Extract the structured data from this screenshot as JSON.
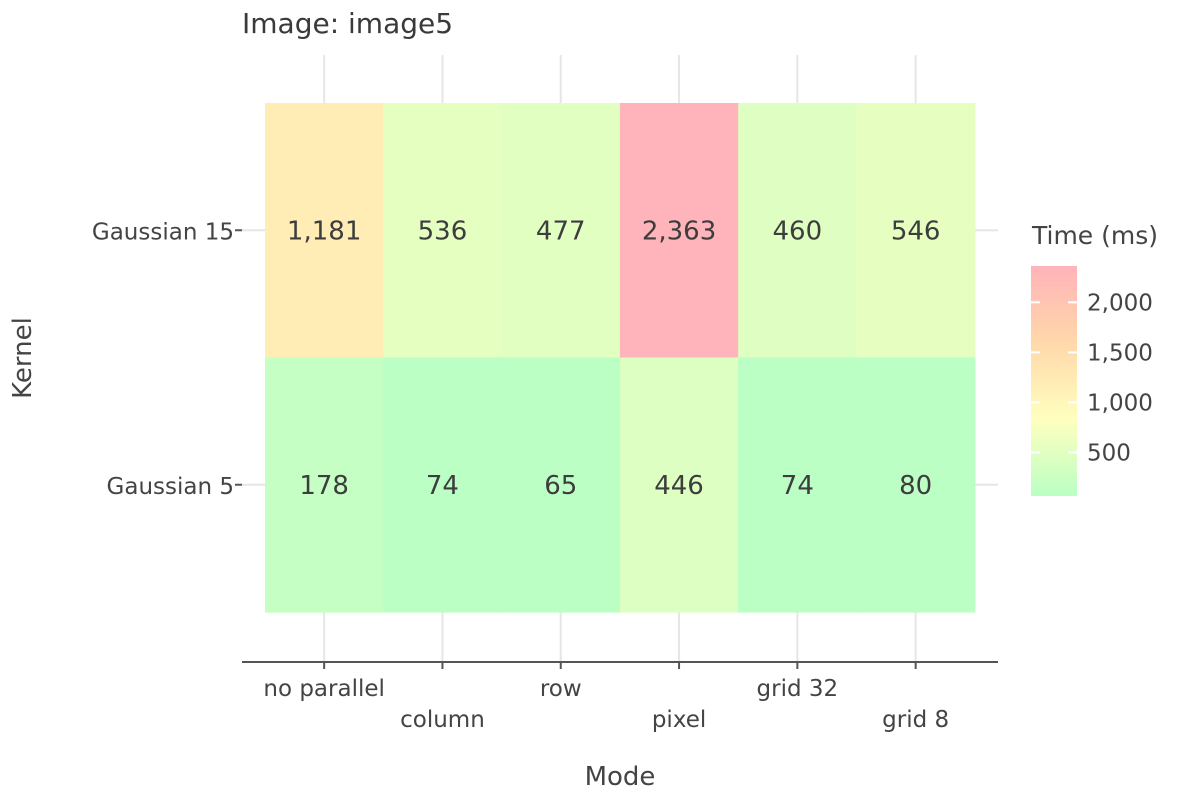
{
  "chart_data": {
    "type": "heatmap",
    "title": "Image: image5",
    "xlabel": "Mode",
    "ylabel": "Kernel",
    "x_categories": [
      "no parallel",
      "column",
      "row",
      "pixel",
      "grid 32",
      "grid 8"
    ],
    "y_categories": [
      "Gaussian 15",
      "Gaussian 5"
    ],
    "values": [
      [
        1181,
        536,
        477,
        2363,
        460,
        546
      ],
      [
        178,
        74,
        65,
        446,
        74,
        80
      ]
    ],
    "value_labels": [
      [
        "1,181",
        "536",
        "477",
        "2,363",
        "460",
        "546"
      ],
      [
        "178",
        "74",
        "65",
        "446",
        "74",
        "80"
      ]
    ],
    "legend": {
      "title": "Time (ms)",
      "ticks": [
        500,
        1000,
        1500,
        2000
      ],
      "tick_labels": [
        "500",
        "1,000",
        "1,500",
        "2,000"
      ],
      "range": [
        65,
        2363
      ],
      "position": "right",
      "colors": [
        "#bbffc4",
        "#ffffbf",
        "#ffd8aa",
        "#ffb3ba"
      ]
    },
    "grid": true
  }
}
